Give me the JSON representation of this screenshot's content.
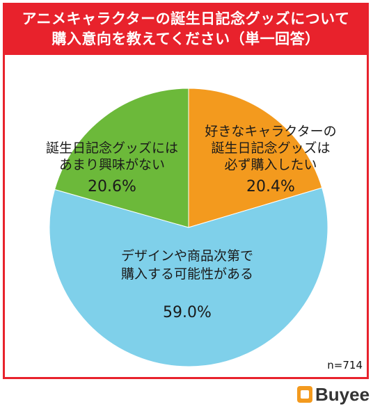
{
  "title": {
    "line1": "アニメキャラクターの誕生日記念グッズについて",
    "line2": "購入意向を教えてください（単一回答）"
  },
  "sample_size": "n=714",
  "brand": "Buyee",
  "colors": {
    "frame": "#e8222c",
    "orange": "#f39a1e",
    "blue": "#7fd0ea",
    "green": "#6cb93a"
  },
  "chart_data": {
    "type": "pie",
    "slices": [
      {
        "label": [
          "好きなキャラクターの",
          "誕生日記念グッズは",
          "必ず購入したい"
        ],
        "value": 20.4,
        "value_text": "20.4%",
        "color": "#f39a1e"
      },
      {
        "label": [
          "デザインや商品次第で",
          "購入する可能性がある"
        ],
        "value": 59.0,
        "value_text": "59.0%",
        "color": "#7fd0ea"
      },
      {
        "label": [
          "誕生日記念グッズには",
          "あまり興味がない"
        ],
        "value": 20.6,
        "value_text": "20.6%",
        "color": "#6cb93a"
      }
    ]
  }
}
